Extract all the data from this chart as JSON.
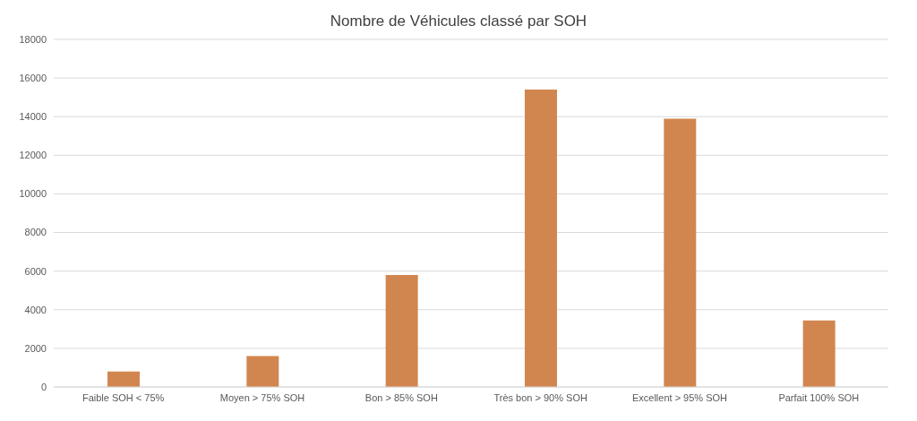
{
  "chart_data": {
    "type": "bar",
    "title": "Nombre de Véhicules classé par SOH",
    "categories": [
      "Faible SOH < 75%",
      "Moyen > 75% SOH",
      "Bon > 85% SOH",
      "Très bon > 90% SOH",
      "Excellent > 95% SOH",
      "Parfait 100% SOH"
    ],
    "values": [
      800,
      1600,
      5800,
      15400,
      13900,
      3450
    ],
    "color": "#d2864f",
    "ylim": [
      0,
      18000
    ],
    "yticks": [
      0,
      2000,
      4000,
      6000,
      8000,
      10000,
      12000,
      14000,
      16000,
      18000
    ],
    "grid": "y"
  }
}
